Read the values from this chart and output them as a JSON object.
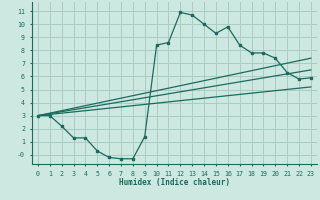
{
  "xlabel": "Humidex (Indice chaleur)",
  "xlim": [
    -0.5,
    23.5
  ],
  "ylim": [
    -0.7,
    11.7
  ],
  "xticks": [
    0,
    1,
    2,
    3,
    4,
    5,
    6,
    7,
    8,
    9,
    10,
    11,
    12,
    13,
    14,
    15,
    16,
    17,
    18,
    19,
    20,
    21,
    22,
    23
  ],
  "yticks": [
    0,
    1,
    2,
    3,
    4,
    5,
    6,
    7,
    8,
    9,
    10,
    11
  ],
  "ytick_labels": [
    "-0",
    "1",
    "2",
    "3",
    "4",
    "5",
    "6",
    "7",
    "8",
    "9",
    "10",
    "11"
  ],
  "background_color": "#cce8e0",
  "grid_color": "#aaccC4",
  "line_color": "#1a6b5e",
  "curve1_x": [
    0,
    1,
    2,
    3,
    4,
    5,
    6,
    7,
    8,
    9,
    10,
    11,
    12,
    13,
    14,
    15,
    16,
    17,
    18,
    19,
    20,
    21,
    22,
    23
  ],
  "curve1_y": [
    3.0,
    3.0,
    2.2,
    1.3,
    1.3,
    0.3,
    -0.2,
    -0.3,
    -0.3,
    1.4,
    8.4,
    8.6,
    10.9,
    10.7,
    10.0,
    9.3,
    9.8,
    8.4,
    7.8,
    7.8,
    7.4,
    6.3,
    5.8,
    5.9
  ],
  "line1_x": [
    0,
    23
  ],
  "line1_y": [
    3.0,
    7.4
  ],
  "line2_x": [
    0,
    23
  ],
  "line2_y": [
    3.0,
    6.5
  ],
  "line3_x": [
    0,
    23
  ],
  "line3_y": [
    3.0,
    5.2
  ]
}
